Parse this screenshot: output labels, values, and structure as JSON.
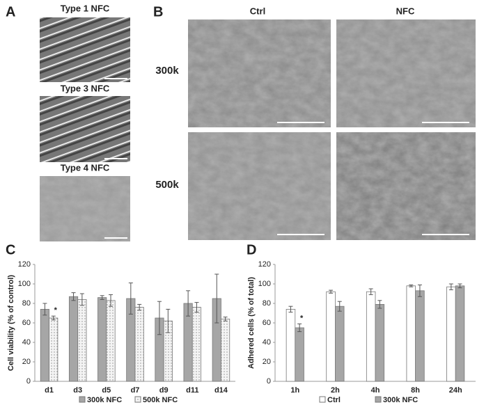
{
  "panel_labels": [
    "A",
    "B",
    "C",
    "D"
  ],
  "panel_a": {
    "titles": [
      "Type 1 NFC",
      "Type 3 NFC",
      "Type 4 NFC"
    ]
  },
  "panel_b": {
    "columns": [
      "Ctrl",
      "NFC"
    ],
    "rows": [
      "300k",
      "500k"
    ]
  },
  "chart_data": [
    {
      "type": "bar",
      "ylabel": "Cell viability (% of control)",
      "categories": [
        "d1",
        "d3",
        "d5",
        "d7",
        "d9",
        "d11",
        "d14"
      ],
      "series": [
        {
          "name": "300k NFC",
          "color": "#a6a6a6",
          "values": [
            74,
            87,
            86,
            85,
            65,
            80,
            85
          ],
          "errors": [
            6,
            4,
            2,
            16,
            17,
            13,
            25
          ]
        },
        {
          "name": "500k NFC",
          "color": "#f2f2f2",
          "pattern": "dots",
          "values": [
            65,
            84,
            83,
            76,
            62,
            76,
            64
          ],
          "errors": [
            2,
            6,
            6,
            3,
            12,
            5,
            2
          ]
        }
      ],
      "annotations": [
        {
          "text": "*",
          "category": "d1",
          "series": "500k NFC"
        }
      ],
      "ylim": [
        0,
        120
      ],
      "yticks": [
        0,
        20,
        40,
        60,
        80,
        100,
        120
      ],
      "grid": false,
      "legend": "bottom"
    },
    {
      "type": "bar",
      "ylabel": "Adhered cells (% of total)",
      "categories": [
        "1h",
        "2h",
        "4h",
        "8h",
        "24h"
      ],
      "series": [
        {
          "name": "Ctrl",
          "color": "#ffffff",
          "values": [
            74,
            92,
            92,
            98,
            97
          ],
          "errors": [
            3,
            1.5,
            3,
            1,
            3
          ]
        },
        {
          "name": "300k NFC",
          "color": "#a6a6a6",
          "values": [
            55,
            77,
            79,
            93,
            98
          ],
          "errors": [
            4,
            5,
            4,
            6,
            2
          ]
        }
      ],
      "annotations": [
        {
          "text": "*",
          "category": "1h",
          "series": "300k NFC"
        }
      ],
      "ylim": [
        0,
        120
      ],
      "yticks": [
        0,
        20,
        40,
        60,
        80,
        100,
        120
      ],
      "grid": false,
      "legend": "bottom"
    }
  ]
}
